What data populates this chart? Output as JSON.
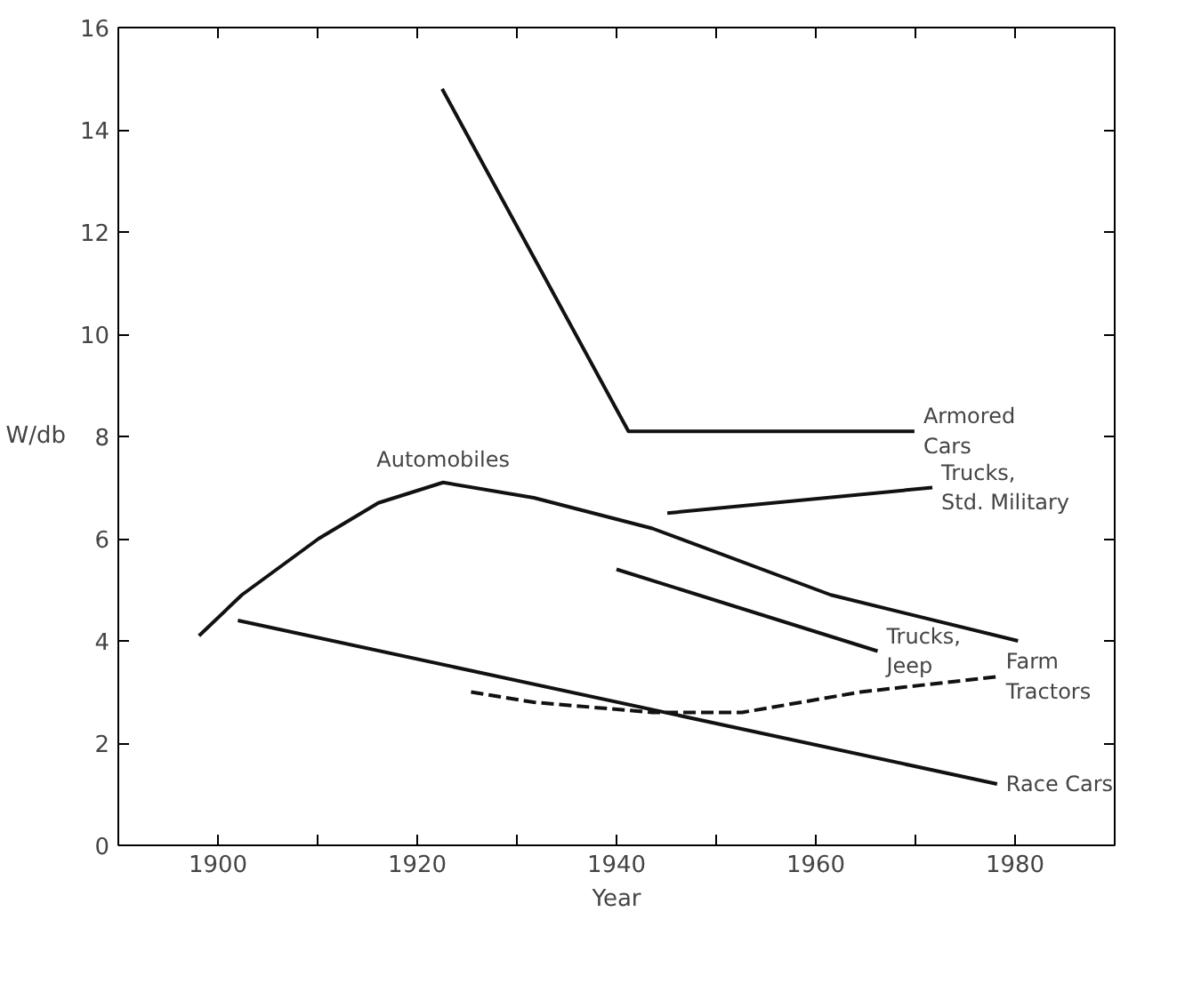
{
  "chart_data": {
    "type": "line",
    "xlabel": "Year",
    "ylabel": "W/db",
    "xlim": [
      1890,
      1990
    ],
    "ylim": [
      0,
      16
    ],
    "xticks": [
      1900,
      {
        "value": 1910,
        "label": null
      },
      1920,
      {
        "value": 1930,
        "label": null
      },
      1940,
      {
        "value": 1950,
        "label": null
      },
      1960,
      {
        "value": 1970,
        "label": null
      },
      1980
    ],
    "yticks": [
      0,
      2,
      4,
      6,
      8,
      10,
      12,
      14,
      16
    ],
    "grid": false,
    "legend": false,
    "marker": "none",
    "series": [
      {
        "name": "Armored\nCars",
        "color": "#111111",
        "x": [
          1922.5,
          1941.2,
          1969.9
        ],
        "values": [
          14.8,
          8.1,
          8.1
        ]
      },
      {
        "name": "Automobiles",
        "color": "#111111",
        "x": [
          1898.1,
          1902.4,
          1910.1,
          1916.1,
          1922.6,
          1931.7,
          1943.6,
          1961.5,
          1980.3
        ],
        "values": [
          4.1,
          4.9,
          6.0,
          6.7,
          7.1,
          6.8,
          6.2,
          4.9,
          4.0
        ]
      },
      {
        "name": "Race Cars",
        "color": "#111111",
        "x": [
          1902,
          1978.2
        ],
        "values": [
          4.4,
          1.2
        ]
      },
      {
        "name": "Trucks,\nStd. Military",
        "color": "#111111",
        "x": [
          1945.1,
          1971.7
        ],
        "values": [
          6.5,
          7.0
        ]
      },
      {
        "name": "Trucks,\nJeep",
        "color": "#111111",
        "x": [
          1940,
          1966.2
        ],
        "values": [
          5.4,
          3.8
        ]
      },
      {
        "name": "Farm\nTractors",
        "color": "#111111",
        "line_style": "dashed",
        "x": [
          1925.4,
          1931.7,
          1943.6,
          1952.6,
          1964.5,
          1978.2
        ],
        "values": [
          3.0,
          2.8,
          2.6,
          2.6,
          3.0,
          3.3
        ]
      }
    ]
  }
}
